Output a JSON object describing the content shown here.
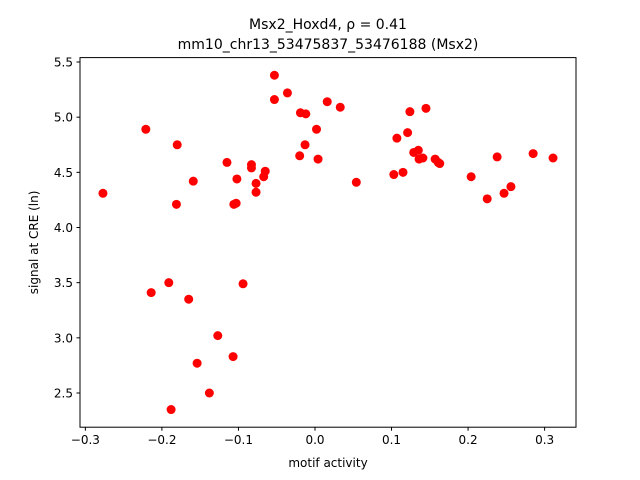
{
  "chart_data": {
    "type": "scatter",
    "title": "Msx2_Hoxd4, ρ = 0.41",
    "subtitle": "mm10_chr13_53475837_53476188 (Msx2)",
    "xlabel": "motif activity",
    "ylabel": "signal at CRE (ln)",
    "xlim": [
      -0.307,
      0.341
    ],
    "ylim": [
      2.19,
      5.54
    ],
    "xticks": [
      -0.3,
      -0.2,
      -0.1,
      0.0,
      0.1,
      0.2,
      0.3
    ],
    "xtick_labels": [
      "−0.3",
      "−0.2",
      "−0.1",
      "0.0",
      "0.1",
      "0.2",
      "0.3"
    ],
    "yticks": [
      2.5,
      3.0,
      3.5,
      4.0,
      4.5,
      5.0,
      5.5
    ],
    "ytick_labels": [
      "2.5",
      "3.0",
      "3.5",
      "4.0",
      "4.5",
      "5.0",
      "5.5"
    ],
    "marker_color": "#ff0000",
    "grid": false,
    "legend": "none",
    "points": [
      [
        -0.277,
        4.31
      ],
      [
        -0.221,
        4.89
      ],
      [
        -0.214,
        3.41
      ],
      [
        -0.191,
        3.5
      ],
      [
        -0.188,
        2.35
      ],
      [
        -0.181,
        4.21
      ],
      [
        -0.18,
        4.75
      ],
      [
        -0.165,
        3.35
      ],
      [
        -0.159,
        4.42
      ],
      [
        -0.154,
        2.77
      ],
      [
        -0.138,
        2.5
      ],
      [
        -0.127,
        3.02
      ],
      [
        -0.115,
        4.59
      ],
      [
        -0.107,
        2.83
      ],
      [
        -0.106,
        4.21
      ],
      [
        -0.103,
        4.22
      ],
      [
        -0.102,
        4.44
      ],
      [
        -0.094,
        3.49
      ],
      [
        -0.083,
        4.57
      ],
      [
        -0.083,
        4.54
      ],
      [
        -0.077,
        4.4
      ],
      [
        -0.077,
        4.32
      ],
      [
        -0.067,
        4.46
      ],
      [
        -0.065,
        4.51
      ],
      [
        -0.053,
        5.38
      ],
      [
        -0.053,
        5.16
      ],
      [
        -0.036,
        5.22
      ],
      [
        -0.02,
        4.65
      ],
      [
        -0.019,
        5.04
      ],
      [
        -0.013,
        4.75
      ],
      [
        -0.012,
        5.03
      ],
      [
        0.002,
        4.89
      ],
      [
        0.004,
        4.62
      ],
      [
        0.016,
        5.14
      ],
      [
        0.033,
        5.09
      ],
      [
        0.054,
        4.41
      ],
      [
        0.103,
        4.48
      ],
      [
        0.107,
        4.81
      ],
      [
        0.115,
        4.5
      ],
      [
        0.121,
        4.86
      ],
      [
        0.124,
        5.05
      ],
      [
        0.129,
        4.68
      ],
      [
        0.135,
        4.7
      ],
      [
        0.136,
        4.62
      ],
      [
        0.141,
        4.63
      ],
      [
        0.145,
        5.08
      ],
      [
        0.157,
        4.62
      ],
      [
        0.161,
        4.59
      ],
      [
        0.163,
        4.58
      ],
      [
        0.204,
        4.46
      ],
      [
        0.225,
        4.26
      ],
      [
        0.238,
        4.64
      ],
      [
        0.247,
        4.31
      ],
      [
        0.256,
        4.37
      ],
      [
        0.285,
        4.67
      ],
      [
        0.311,
        4.63
      ]
    ]
  }
}
